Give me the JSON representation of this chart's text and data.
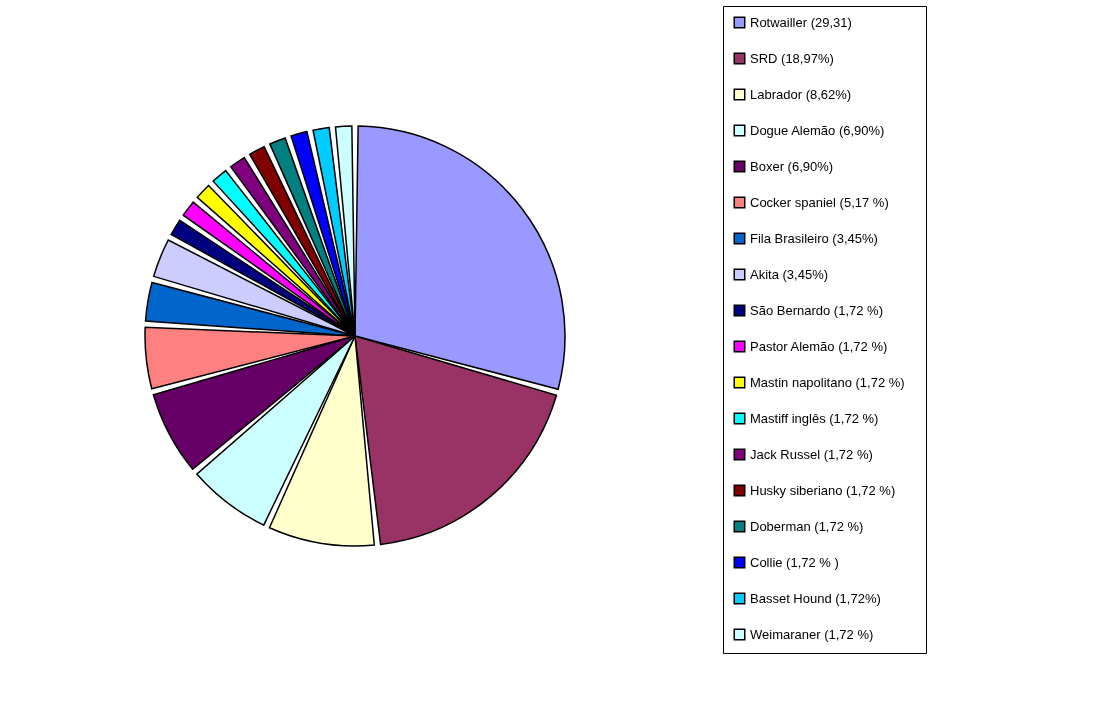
{
  "chart_data": {
    "type": "pie",
    "categories": [
      "Rotwailler (29,31)",
      "SRD   (18,97%)",
      "Labrador  (8,62%)",
      "Dogue Alemão  (6,90%)",
      "Boxer     (6,90%)",
      "Cocker spaniel     (5,17 %)",
      "Fila Brasileiro (3,45%)",
      "Akita  (3,45%)",
      "São Bernardo    (1,72 %)",
      "Pastor Alemão   (1,72 %)",
      "Mastin napolitano    (1,72 %)",
      "Mastiff inglês      (1,72 %)",
      "Jack Russel      (1,72 %)",
      "Husky siberiano   (1,72 %)",
      "Doberman   (1,72 %)",
      "Collie   (1,72 % )",
      "Basset Hound  (1,72%)",
      "Weimaraner  (1,72 %)"
    ],
    "values": [
      29.31,
      18.97,
      8.62,
      6.9,
      6.9,
      5.17,
      3.45,
      3.45,
      1.72,
      1.72,
      1.72,
      1.72,
      1.72,
      1.72,
      1.72,
      1.72,
      1.72,
      1.72
    ],
    "colors": [
      "#9999ff",
      "#993366",
      "#ffffcc",
      "#ccffff",
      "#660066",
      "#ff8080",
      "#0066cc",
      "#ccccff",
      "#000080",
      "#ff00ff",
      "#ffff00",
      "#00ffff",
      "#800080",
      "#800000",
      "#008080",
      "#0000ff",
      "#00ccff",
      "#ccffff"
    ],
    "legend": "right"
  }
}
